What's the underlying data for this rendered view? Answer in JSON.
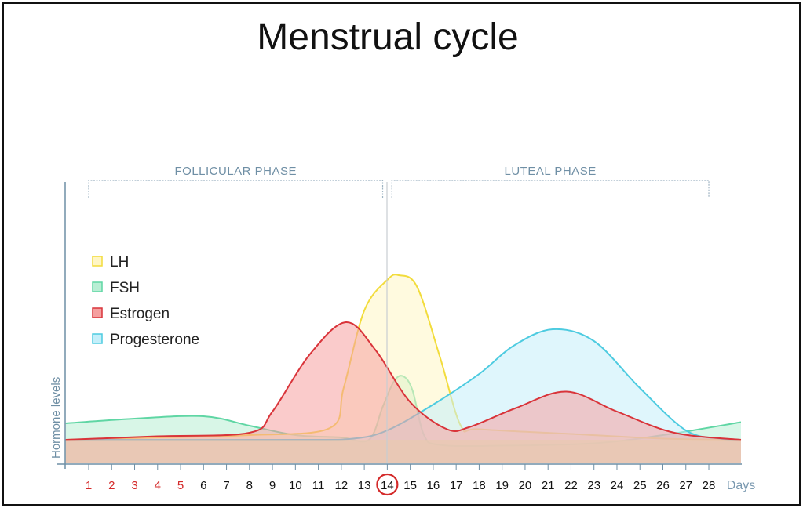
{
  "chart_data": {
    "type": "area",
    "title": "Menstrual cycle",
    "xlabel": "Days",
    "ylabel": "Hormone levels",
    "xlim": [
      0,
      29.4
    ],
    "ylim": [
      0,
      12
    ],
    "x_ticks": [
      "1",
      "2",
      "3",
      "4",
      "5",
      "6",
      "7",
      "8",
      "9",
      "10",
      "11",
      "12",
      "13",
      "14",
      "15",
      "16",
      "17",
      "18",
      "19",
      "20",
      "21",
      "22",
      "23",
      "24",
      "25",
      "26",
      "27",
      "28"
    ],
    "menstruation_days": [
      1,
      2,
      3,
      4,
      5
    ],
    "highlighted_day": 14,
    "phases": [
      {
        "label": "FOLLICULAR PHASE",
        "start_day": 1,
        "end_day": 13.8
      },
      {
        "label": "LUTEAL PHASE",
        "start_day": 14.2,
        "end_day": 28
      }
    ],
    "legend_position": "top-left",
    "series": [
      {
        "name": "LH",
        "stroke": "#f2dc3c",
        "fill": "#fff6c4",
        "points": [
          [
            0,
            1.0
          ],
          [
            4,
            1.1
          ],
          [
            8,
            1.2
          ],
          [
            11.5,
            1.5
          ],
          [
            12.1,
            3.2
          ],
          [
            13,
            6.5
          ],
          [
            14,
            7.8
          ],
          [
            14.5,
            8.0
          ],
          [
            15.3,
            7.5
          ],
          [
            16.3,
            4.5
          ],
          [
            17.2,
            1.6
          ],
          [
            18,
            1.45
          ],
          [
            22,
            1.25
          ],
          [
            26,
            1.05
          ],
          [
            29.4,
            1.0
          ]
        ]
      },
      {
        "name": "FSH",
        "stroke": "#5fd6a4",
        "fill": "#b8eed4",
        "points": [
          [
            0,
            1.7
          ],
          [
            3,
            1.9
          ],
          [
            6,
            2.0
          ],
          [
            8,
            1.6
          ],
          [
            10,
            1.2
          ],
          [
            12,
            1.1
          ],
          [
            13.2,
            1.0
          ],
          [
            13.8,
            2.4
          ],
          [
            14.3,
            3.5
          ],
          [
            14.7,
            3.7
          ],
          [
            15.1,
            3.1
          ],
          [
            15.6,
            1.2
          ],
          [
            16.3,
            0.78
          ],
          [
            19,
            0.75
          ],
          [
            23,
            0.85
          ],
          [
            26,
            1.2
          ],
          [
            29.4,
            1.75
          ]
        ]
      },
      {
        "name": "Estrogen",
        "stroke": "#d9343a",
        "fill": "#f5a0a0",
        "points": [
          [
            0,
            1.0
          ],
          [
            4,
            1.15
          ],
          [
            8,
            1.3
          ],
          [
            9,
            2.2
          ],
          [
            10.6,
            4.6
          ],
          [
            12.2,
            6.0
          ],
          [
            13.5,
            4.8
          ],
          [
            15,
            2.6
          ],
          [
            16.6,
            1.45
          ],
          [
            17.6,
            1.55
          ],
          [
            19.6,
            2.35
          ],
          [
            21.8,
            3.05
          ],
          [
            24,
            2.2
          ],
          [
            26.5,
            1.3
          ],
          [
            29.4,
            1.0
          ]
        ]
      },
      {
        "name": "Progesterone",
        "stroke": "#4dcbe0",
        "fill": "#c4effa",
        "points": [
          [
            0,
            1.0
          ],
          [
            10,
            1.0
          ],
          [
            12.5,
            1.05
          ],
          [
            14,
            1.4
          ],
          [
            16,
            2.5
          ],
          [
            18,
            3.8
          ],
          [
            19.5,
            5.0
          ],
          [
            21.2,
            5.7
          ],
          [
            23,
            5.2
          ],
          [
            25,
            3.2
          ],
          [
            27,
            1.4
          ],
          [
            28.5,
            1.05
          ],
          [
            29.4,
            1.0
          ]
        ]
      }
    ]
  }
}
